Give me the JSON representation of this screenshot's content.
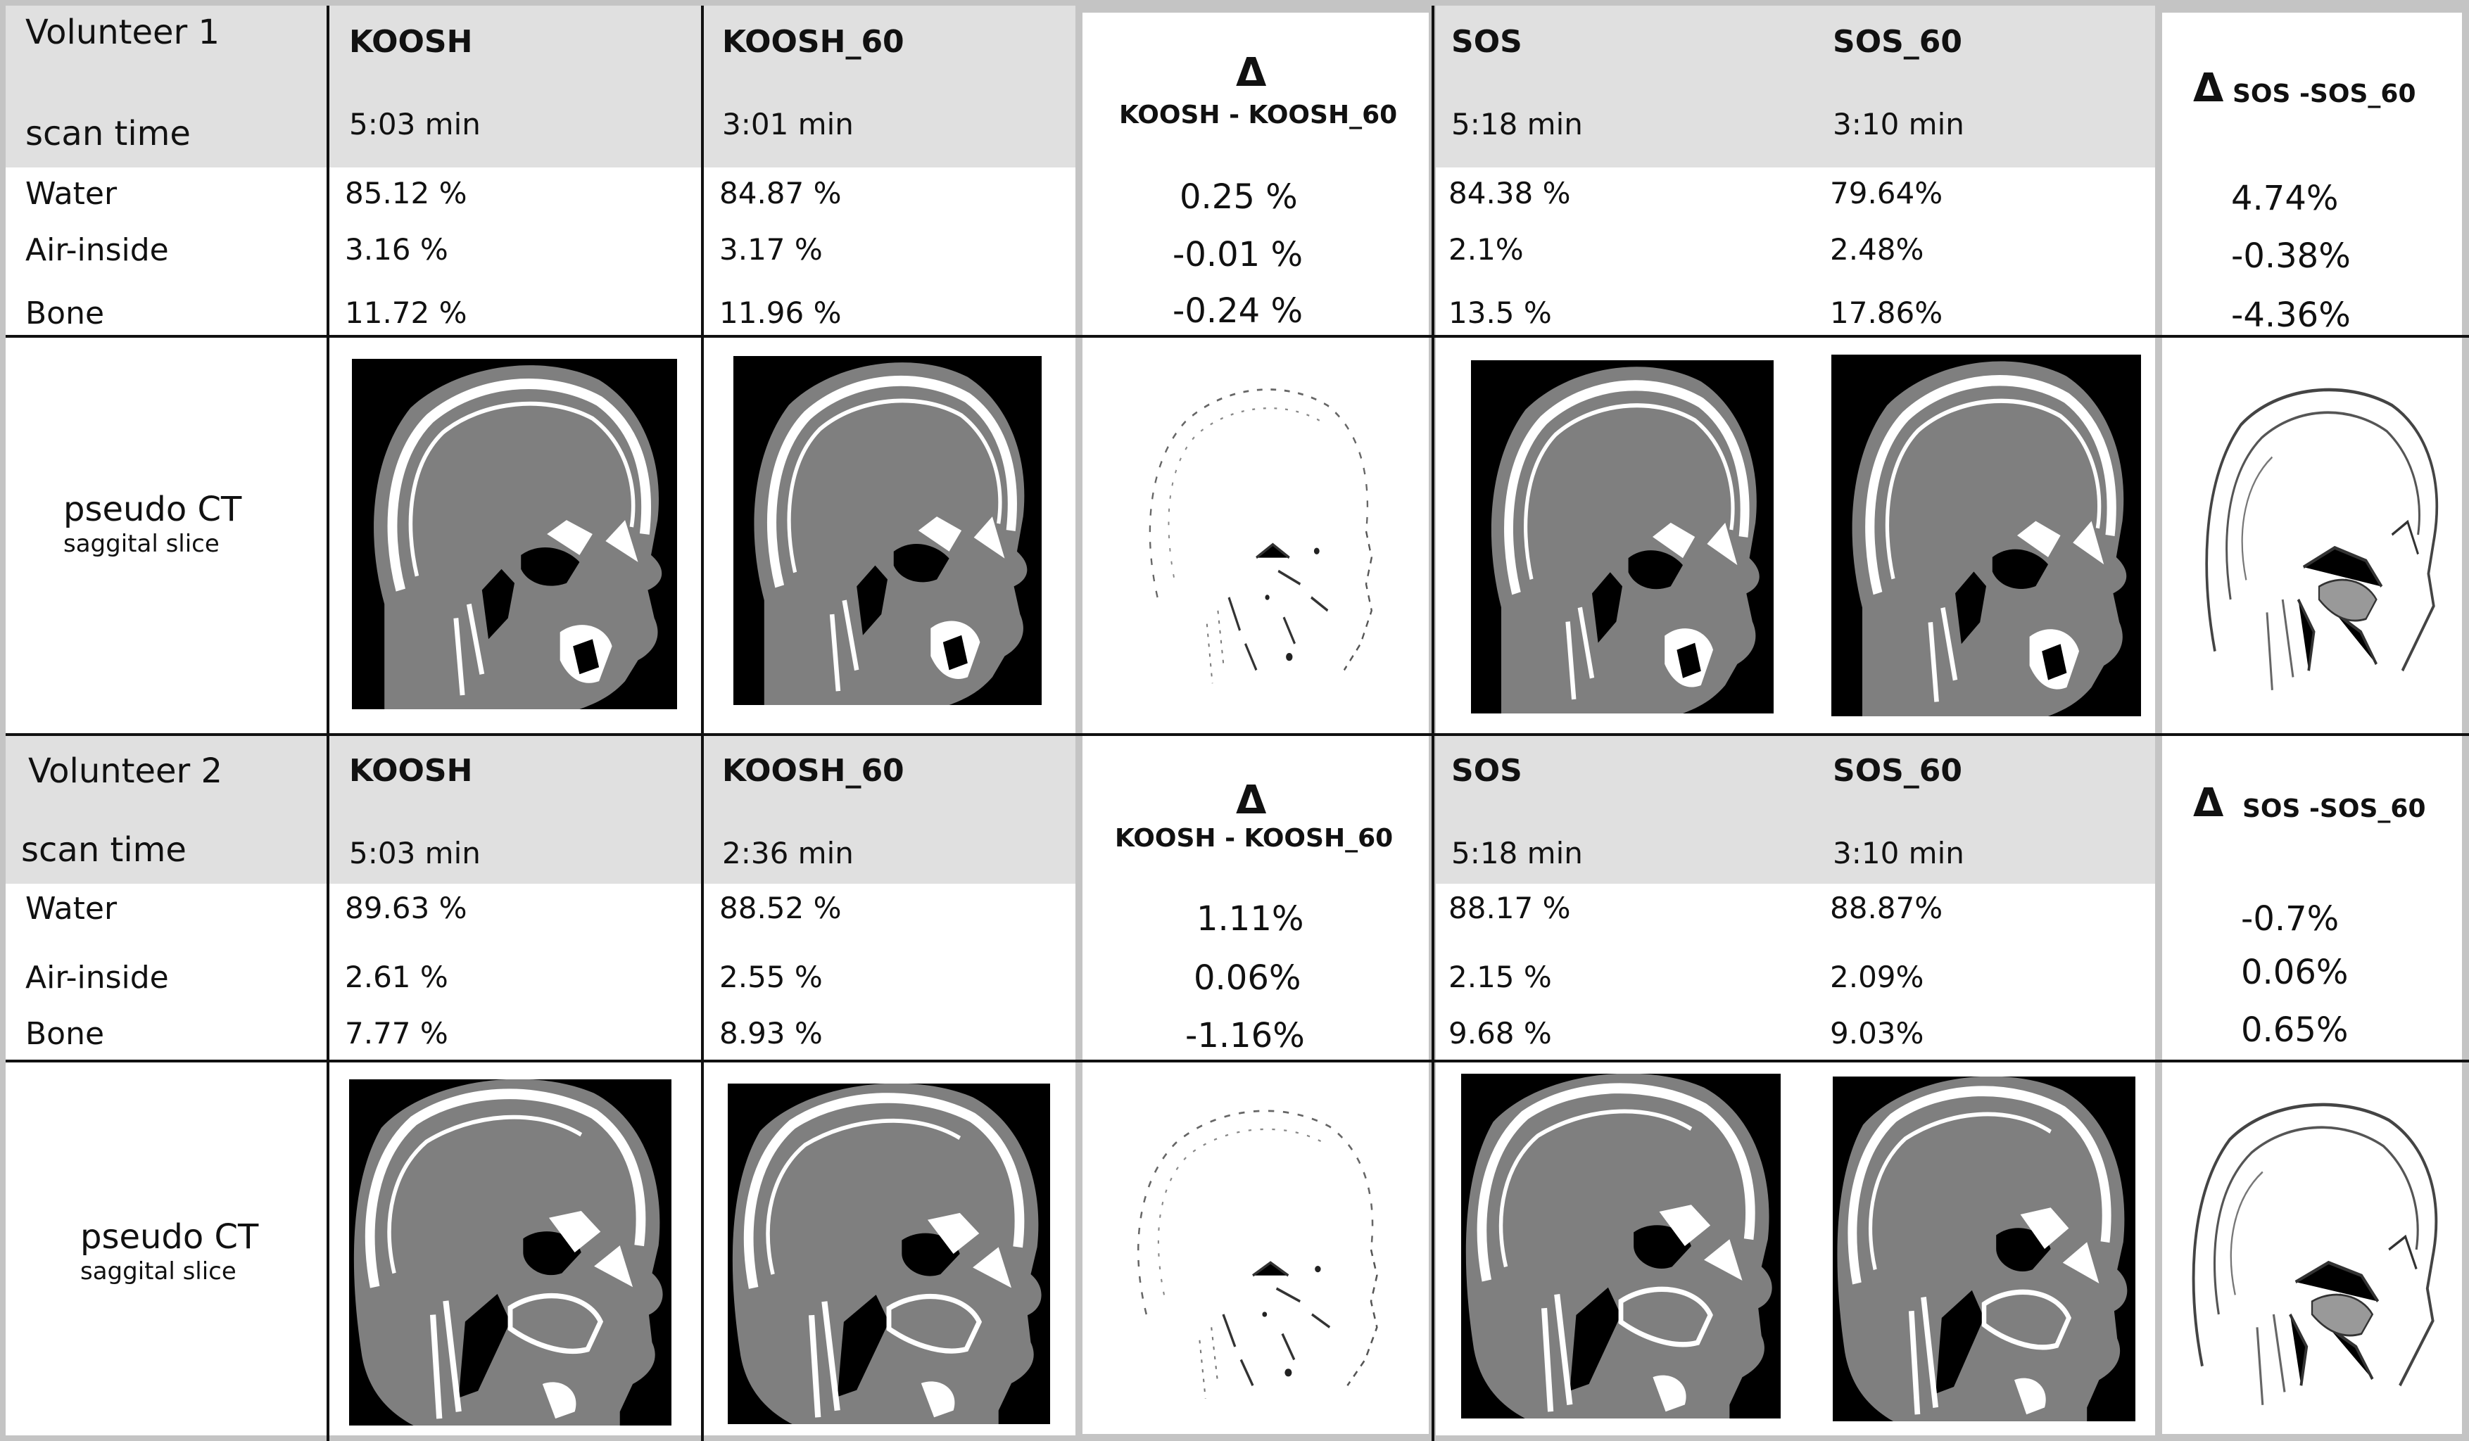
{
  "volunteer1": {
    "title": "Volunteer 1",
    "scan_time_label": "scan time",
    "headers": {
      "koosh": "KOOSH",
      "koosh60": "KOOSH_60",
      "delta_symbol": "Δ",
      "delta_koosh": "KOOSH - KOOSH_60",
      "sos": "SOS",
      "sos60": "SOS_60",
      "delta_sos": "SOS -SOS_60"
    },
    "scan_times": {
      "koosh": "5:03 min",
      "koosh60": "3:01 min",
      "sos": "5:18 min",
      "sos60": "3:10 min"
    },
    "rows": [
      {
        "label": "Water",
        "koosh": "85.12 %",
        "koosh60": "84.87 %",
        "delta_koosh": "0.25 %",
        "sos": "84.38 %",
        "sos60": "79.64%",
        "delta_sos": "4.74%"
      },
      {
        "label": "Air-inside",
        "koosh": "3.16 %",
        "koosh60": "3.17 %",
        "delta_koosh": "-0.01 %",
        "sos": "2.1%",
        "sos60": "2.48%",
        "delta_sos": "-0.38%"
      },
      {
        "label": "Bone",
        "koosh": "11.72 %",
        "koosh60": "11.96 %",
        "delta_koosh": "-0.24 %",
        "sos": "13.5 %",
        "sos60": "17.86%",
        "delta_sos": "-4.36%"
      }
    ],
    "image_label": "pseudo CT",
    "image_sublabel": "saggital slice"
  },
  "volunteer2": {
    "title": "Volunteer 2",
    "scan_time_label": "scan time",
    "headers": {
      "koosh": "KOOSH",
      "koosh60": "KOOSH_60",
      "delta_symbol": "Δ",
      "delta_koosh": "KOOSH - KOOSH_60",
      "sos": "SOS",
      "sos60": "SOS_60",
      "delta_sos": "SOS -SOS_60"
    },
    "scan_times": {
      "koosh": "5:03 min",
      "koosh60": "2:36 min",
      "sos": "5:18 min",
      "sos60": "3:10 min"
    },
    "rows": [
      {
        "label": "Water",
        "koosh": "89.63 %",
        "koosh60": "88.52 %",
        "delta_koosh": "1.11%",
        "sos": "88.17 %",
        "sos60": "88.87%",
        "delta_sos": "-0.7%"
      },
      {
        "label": "Air-inside",
        "koosh": "2.61 %",
        "koosh60": "2.55 %",
        "delta_koosh": "0.06%",
        "sos": "2.15 %",
        "sos60": "2.09%",
        "delta_sos": "0.06%"
      },
      {
        "label": "Bone",
        "koosh": "7.77 %",
        "koosh60": "8.93 %",
        "delta_koosh": "-1.16%",
        "sos": "9.68 %",
        "sos60": "9.03%",
        "delta_sos": "0.65%"
      }
    ],
    "image_label": "pseudo CT",
    "image_sublabel": "saggital slice"
  }
}
